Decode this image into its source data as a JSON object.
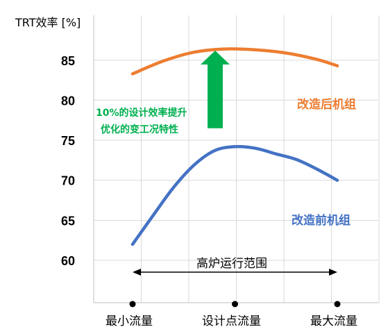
{
  "chart_data": {
    "type": "line",
    "ylabel": "TRT效率 [%]",
    "ylim": [
      55,
      92
    ],
    "yticks": [
      60,
      65,
      70,
      75,
      80,
      85
    ],
    "grid": true,
    "xlim": [
      0,
      1
    ],
    "x_ticks": [
      {
        "x": 0.0,
        "label": "最小流量"
      },
      {
        "x": 0.5,
        "label": "设计点流量"
      },
      {
        "x": 1.0,
        "label": "最大流量"
      }
    ],
    "series": [
      {
        "name": "改造后机组",
        "color": "#ED7D31",
        "points": [
          [
            0.0,
            83.3
          ],
          [
            0.15,
            84.9
          ],
          [
            0.3,
            86.0
          ],
          [
            0.45,
            86.4
          ],
          [
            0.6,
            86.3
          ],
          [
            0.75,
            85.9
          ],
          [
            0.9,
            85.1
          ],
          [
            1.0,
            84.3
          ]
        ]
      },
      {
        "name": "改造前机组",
        "color": "#4472C4",
        "points": [
          [
            0.0,
            62.0
          ],
          [
            0.1,
            65.6
          ],
          [
            0.2,
            69.1
          ],
          [
            0.3,
            71.9
          ],
          [
            0.4,
            73.7
          ],
          [
            0.5,
            74.2
          ],
          [
            0.6,
            74.0
          ],
          [
            0.7,
            73.3
          ],
          [
            0.8,
            72.6
          ],
          [
            0.9,
            71.4
          ],
          [
            1.0,
            70.0
          ]
        ]
      }
    ],
    "annotations": {
      "improvement_text_line1": "10%的设计效率提升",
      "improvement_text_line2": "优化的变工况特性",
      "improvement_color": "#00B050",
      "arrow_from": 76.5,
      "arrow_to": 86.2,
      "range_label": "高炉运行范围"
    }
  }
}
